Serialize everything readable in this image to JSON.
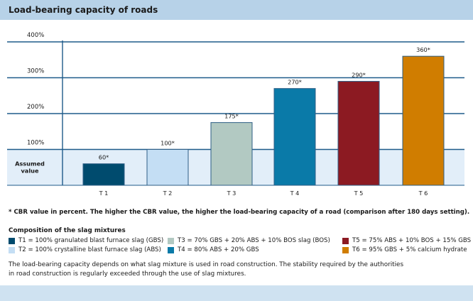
{
  "title": "Load-bearing capacity of roads",
  "chart_data": {
    "type": "bar",
    "categories": [
      "T 1",
      "T 2",
      "T 3",
      "T 4",
      "T 5",
      "T 6"
    ],
    "values": [
      60,
      100,
      175,
      270,
      290,
      360
    ],
    "value_labels": [
      "60*",
      "100*",
      "175*",
      "270*",
      "290*",
      "360*"
    ],
    "colors": [
      "#004b6e",
      "#c4def4",
      "#b2c9c2",
      "#0a7aa8",
      "#8c1a22",
      "#d07d00"
    ],
    "yticks": [
      100,
      200,
      300,
      400
    ],
    "ytick_labels": [
      "100%",
      "200%",
      "300%",
      "400%"
    ],
    "ylim": [
      0,
      410
    ],
    "grid": true,
    "assumed_region": {
      "label_line1": "Assumed",
      "label_line2": "value",
      "upper": 100,
      "color": "#e2eef9"
    }
  },
  "footnote": "* CBR value in percent. The higher the CBR value, the higher the load-bearing capacity of a road (comparison after 180 days setting).",
  "legend": {
    "heading": "Composition of the slag mixtures",
    "items": [
      {
        "text": "T1 = 100% granulated blast furnace slag (GBS)",
        "color": "#004b6e"
      },
      {
        "text": "T2 = 100% crystalline blast furnace slag (ABS)",
        "color": "#c4def4"
      },
      {
        "text": "T3 = 70% GBS + 20% ABS + 10% BOS slag (BOS)",
        "color": "#b2c9c2"
      },
      {
        "text": "T4 = 80% ABS + 20% GBS",
        "color": "#0a7aa8"
      },
      {
        "text": "T5 = 75% ABS + 10% BOS + 15% GBS",
        "color": "#8c1a22"
      },
      {
        "text": "T6 = 95% GBS + 5% calcium hydrate",
        "color": "#d07d00"
      }
    ]
  },
  "description": [
    "The load-bearing capacity depends on what slag mixture is used in road construction. The stability required by the authorities",
    "in road construction is regularly exceeded through the use of slag mixtures."
  ]
}
